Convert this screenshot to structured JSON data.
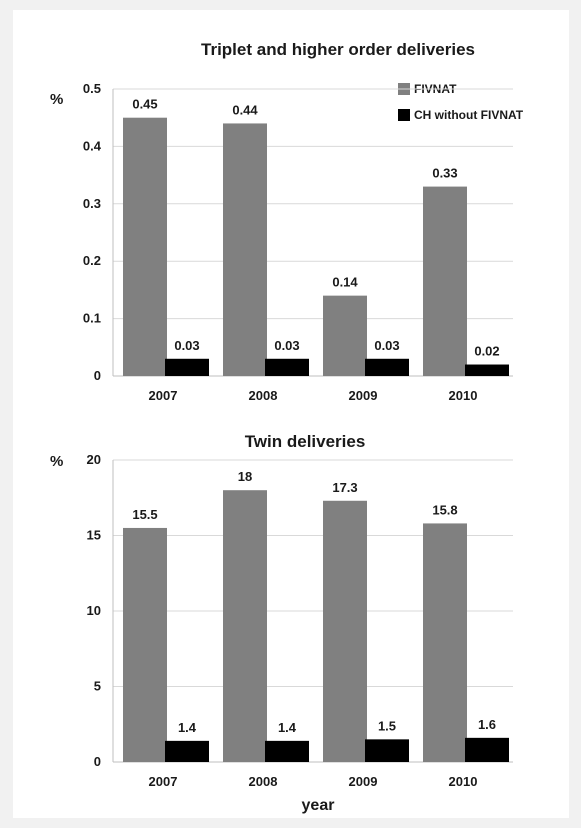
{
  "colors": {
    "FIVNAT": "#808080",
    "CH without FIVNAT": "#000000",
    "grid": "#d9d9d9"
  },
  "chart_data": [
    {
      "type": "bar",
      "title": "Triplet and higher order deliveries",
      "unit_label": "%",
      "xlabel": "",
      "categories": [
        "2007",
        "2008",
        "2009",
        "2010"
      ],
      "ylim": [
        0,
        0.5
      ],
      "yticks": [
        "0",
        "0.1",
        "0.2",
        "0.3",
        "0.4",
        "0.5"
      ],
      "grid": true,
      "legend": "top-right",
      "series": [
        {
          "name": "FIVNAT",
          "values": [
            0.45,
            0.44,
            0.14,
            0.33
          ],
          "labels": [
            "0.45",
            "0.44",
            "0.14",
            "0.33"
          ]
        },
        {
          "name": "CH without FIVNAT",
          "values": [
            0.03,
            0.03,
            0.03,
            0.02
          ],
          "labels": [
            "0.03",
            "0.03",
            "0.03",
            "0.02"
          ]
        }
      ]
    },
    {
      "type": "bar",
      "title": "Twin deliveries",
      "unit_label": "%",
      "xlabel": "year",
      "categories": [
        "2007",
        "2008",
        "2009",
        "2010"
      ],
      "ylim": [
        0,
        20
      ],
      "yticks": [
        "0",
        "5",
        "10",
        "15",
        "20"
      ],
      "grid": true,
      "legend": "none",
      "series": [
        {
          "name": "FIVNAT",
          "values": [
            15.5,
            18,
            17.3,
            15.8
          ],
          "labels": [
            "15.5",
            "18",
            "17.3",
            "15.8"
          ]
        },
        {
          "name": "CH without FIVNAT",
          "values": [
            1.4,
            1.4,
            1.5,
            1.6
          ],
          "labels": [
            "1.4",
            "1.4",
            "1.5",
            "1.6"
          ]
        }
      ]
    }
  ]
}
